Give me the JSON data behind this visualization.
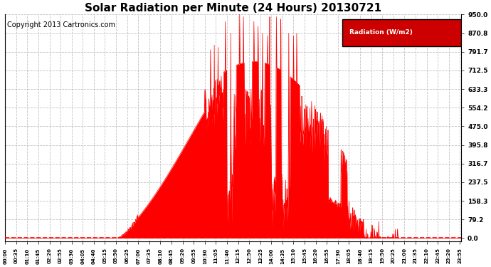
{
  "title": "Solar Radiation per Minute (24 Hours) 20130721",
  "copyright": "Copyright 2013 Cartronics.com",
  "legend_label": "Radiation (W/m2)",
  "ylabel_values": [
    0.0,
    79.2,
    158.3,
    237.5,
    316.7,
    395.8,
    475.0,
    554.2,
    633.3,
    712.5,
    791.7,
    870.8,
    950.0
  ],
  "ymax": 950.0,
  "bar_color": "#FF0000",
  "line_color": "#FF0000",
  "background_color": "#FFFFFF",
  "grid_color": "#BBBBBB",
  "title_fontsize": 11,
  "copyright_fontsize": 7,
  "legend_bg": "#CC0000",
  "legend_text_color": "#FFFFFF",
  "xtick_interval_minutes": 35
}
